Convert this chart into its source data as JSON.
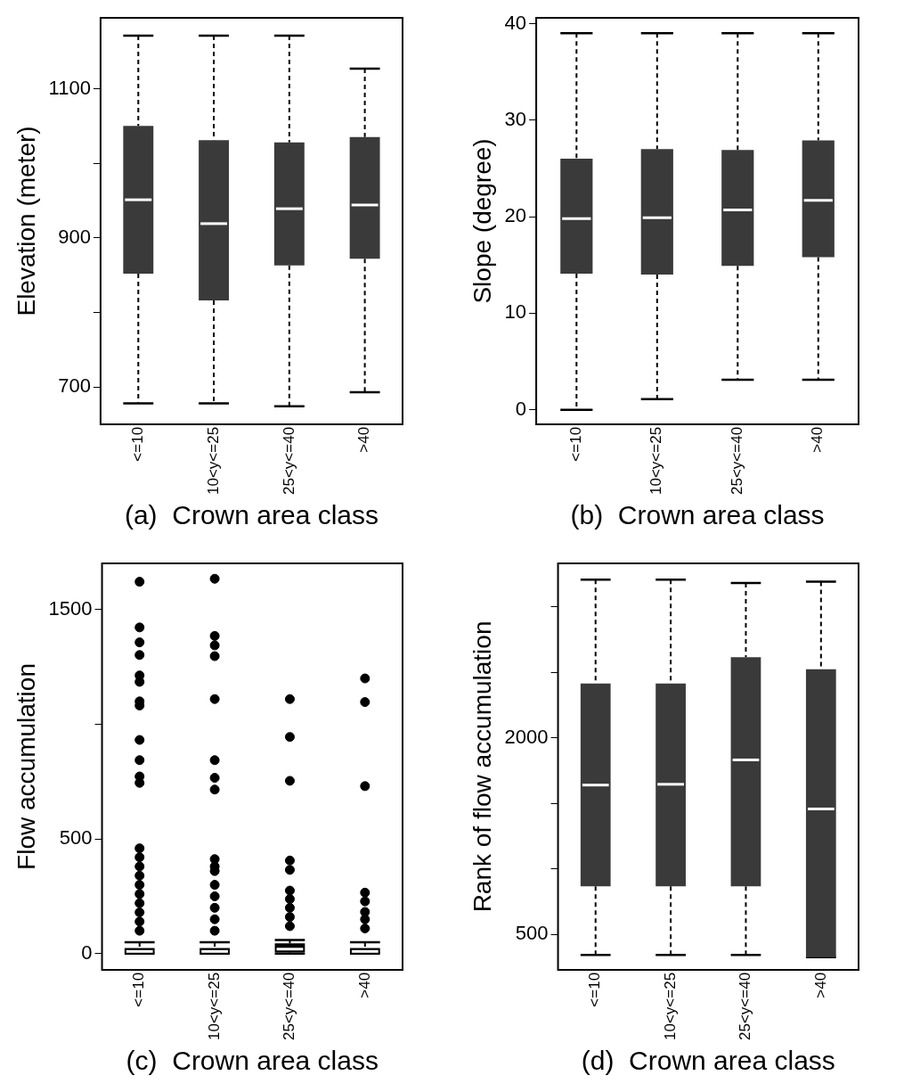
{
  "chart_data": [
    {
      "type": "box",
      "xlabel": "(a)  Crown area class",
      "ylabel": "Elevation (meter)",
      "categories": [
        "<=10",
        "10<y<=25",
        "25<y<=40",
        ">40"
      ],
      "color": "#3a3a3a",
      "grid": false,
      "ylim": [
        650,
        1195
      ],
      "yticks": [
        700,
        {
          "value": 800,
          "label": null
        },
        900,
        {
          "value": 1000,
          "label": null
        },
        1100
      ],
      "boxes": [
        {
          "low": 678,
          "q1": 852,
          "median": 951,
          "q3": 1050,
          "high": 1171
        },
        {
          "low": 678,
          "q1": 816,
          "median": 919,
          "q3": 1031,
          "high": 1171
        },
        {
          "low": 674,
          "q1": 863,
          "median": 939,
          "q3": 1028,
          "high": 1171
        },
        {
          "low": 693,
          "q1": 872,
          "median": 944,
          "q3": 1035,
          "high": 1127
        }
      ]
    },
    {
      "type": "box",
      "xlabel": "(b)  Crown area class",
      "ylabel": "Slope (degree)",
      "categories": [
        "<=10",
        "10<y<=25",
        "25<y<=40",
        ">40"
      ],
      "color": "#3a3a3a",
      "grid": false,
      "ylim": [
        -1.5,
        40.6
      ],
      "yticks": [
        0,
        10,
        20,
        30,
        40
      ],
      "boxes": [
        {
          "low": 0,
          "q1": 14.1,
          "median": 19.8,
          "q3": 26,
          "high": 39
        },
        {
          "low": 1.1,
          "q1": 14,
          "median": 19.9,
          "q3": 27,
          "high": 39
        },
        {
          "low": 3.1,
          "q1": 14.9,
          "median": 20.7,
          "q3": 26.9,
          "high": 39
        },
        {
          "low": 3.1,
          "q1": 15.8,
          "median": 21.7,
          "q3": 27.9,
          "high": 39
        }
      ]
    },
    {
      "type": "box",
      "xlabel": "(c)  Crown area class",
      "ylabel": "Flow accumulation",
      "categories": [
        "<=10",
        "10<y<=25",
        "25<y<=40",
        ">40"
      ],
      "color": "#000000",
      "grid": false,
      "marker": "circle",
      "ylim": [
        -70,
        1700
      ],
      "yticks": [
        0,
        500,
        {
          "value": 1000,
          "label": null
        },
        1500
      ],
      "boxes": [
        {
          "low": 0,
          "q1": 3,
          "median": 10,
          "q3": 25,
          "high": 50,
          "outliers": [
            1620,
            1421,
            1356,
            1301,
            1212,
            1184,
            1099,
            1081,
            931,
            843,
            772,
            744,
            459,
            420,
            380,
            340,
            300,
            260,
            220,
            180,
            140,
            100
          ]
        },
        {
          "low": 0,
          "q1": 3,
          "median": 10,
          "q3": 25,
          "high": 50,
          "outliers": [
            1633,
            1384,
            1343,
            1296,
            1109,
            843,
            766,
            715,
            412,
            380,
            360,
            300,
            250,
            200,
            150,
            100
          ]
        },
        {
          "low": 0,
          "q1": 5,
          "median": 20,
          "q3": 45,
          "high": 60,
          "outliers": [
            1109,
            944,
            753,
            406,
            365,
            275,
            238,
            200,
            160,
            120
          ]
        },
        {
          "low": 0,
          "q1": 3,
          "median": 10,
          "q3": 25,
          "high": 50,
          "outliers": [
            1199,
            1096,
            730,
            266,
            228,
            182,
            150,
            110
          ]
        }
      ]
    },
    {
      "type": "box",
      "xlabel": "(d)  Crown area class",
      "ylabel": "Rank of flow accumulation",
      "categories": [
        "<=10",
        "10<y<=25",
        "25<y<=40",
        ">40"
      ],
      "color": "#3a3a3a",
      "grid": false,
      "ylim": [
        230,
        3330
      ],
      "yticks": [
        500,
        {
          "value": 1000,
          "label": null
        },
        {
          "value": 1500,
          "label": null
        },
        2000,
        {
          "value": 2500,
          "label": null
        },
        {
          "value": 3000,
          "label": null
        }
      ],
      "boxes": [
        {
          "low": 344,
          "q1": 867,
          "median": 1639,
          "q3": 2413,
          "high": 3206
        },
        {
          "low": 344,
          "q1": 867,
          "median": 1645,
          "q3": 2413,
          "high": 3206
        },
        {
          "low": 344,
          "q1": 867,
          "median": 1831,
          "q3": 2615,
          "high": 3180
        },
        {
          "low": 327,
          "q1": 327,
          "median": 1457,
          "q3": 2523,
          "high": 3190
        }
      ]
    }
  ]
}
